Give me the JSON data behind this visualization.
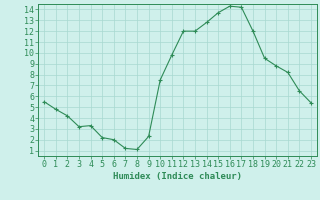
{
  "x": [
    0,
    1,
    2,
    3,
    4,
    5,
    6,
    7,
    8,
    9,
    10,
    11,
    12,
    13,
    14,
    15,
    16,
    17,
    18,
    19,
    20,
    21,
    22,
    23
  ],
  "y": [
    5.5,
    4.8,
    4.2,
    3.2,
    3.3,
    2.2,
    2.0,
    1.2,
    1.1,
    2.3,
    7.5,
    9.8,
    12.0,
    12.0,
    12.8,
    13.7,
    14.3,
    14.2,
    12.0,
    9.5,
    8.8,
    8.2,
    6.5,
    5.4
  ],
  "line_color": "#2e8b57",
  "marker": "+",
  "marker_size": 3,
  "bg_color": "#cff0eb",
  "grid_color": "#a8d8d0",
  "xlabel": "Humidex (Indice chaleur)",
  "xlim": [
    -0.5,
    23.5
  ],
  "ylim": [
    0.5,
    14.5
  ],
  "xticks": [
    0,
    1,
    2,
    3,
    4,
    5,
    6,
    7,
    8,
    9,
    10,
    11,
    12,
    13,
    14,
    15,
    16,
    17,
    18,
    19,
    20,
    21,
    22,
    23
  ],
  "yticks": [
    1,
    2,
    3,
    4,
    5,
    6,
    7,
    8,
    9,
    10,
    11,
    12,
    13,
    14
  ],
  "xlabel_fontsize": 6.5,
  "tick_fontsize": 6,
  "axis_color": "#2e8b57",
  "linewidth": 0.8,
  "markeredgewidth": 0.8
}
